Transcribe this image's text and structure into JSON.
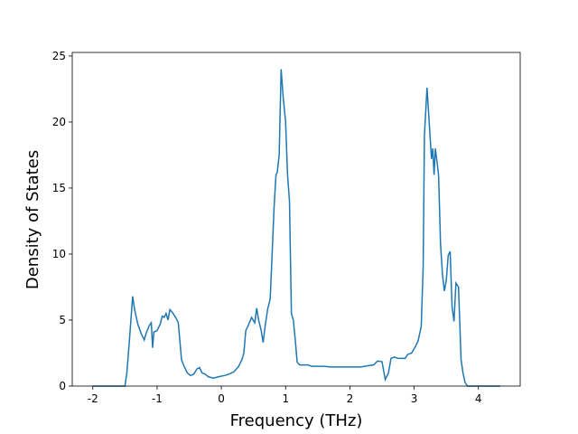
{
  "chart_data": {
    "type": "line",
    "xlabel": "Frequency (THz)",
    "ylabel": "Density of States",
    "x": [
      -2.0,
      -1.5,
      -1.47,
      -1.43,
      -1.38,
      -1.35,
      -1.3,
      -1.25,
      -1.2,
      -1.17,
      -1.12,
      -1.09,
      -1.07,
      -1.05,
      -1.0,
      -0.95,
      -0.92,
      -0.89,
      -0.86,
      -0.83,
      -0.8,
      -0.75,
      -0.7,
      -0.67,
      -0.62,
      -0.58,
      -0.53,
      -0.48,
      -0.43,
      -0.38,
      -0.34,
      -0.3,
      -0.25,
      -0.2,
      -0.12,
      -0.05,
      0.05,
      0.12,
      0.2,
      0.27,
      0.32,
      0.35,
      0.38,
      0.42,
      0.47,
      0.52,
      0.55,
      0.58,
      0.62,
      0.65,
      0.68,
      0.72,
      0.76,
      0.79,
      0.82,
      0.85,
      0.87,
      0.9,
      0.93,
      0.96,
      1.0,
      1.03,
      1.06,
      1.09,
      1.12,
      1.15,
      1.18,
      1.22,
      1.35,
      1.4,
      1.6,
      1.7,
      2.0,
      2.17,
      2.29,
      2.37,
      2.43,
      2.5,
      2.55,
      2.6,
      2.64,
      2.69,
      2.75,
      2.86,
      2.9,
      2.96,
      3.02,
      3.06,
      3.11,
      3.14,
      3.16,
      3.2,
      3.24,
      3.27,
      3.29,
      3.31,
      3.33,
      3.38,
      3.41,
      3.44,
      3.47,
      3.5,
      3.53,
      3.56,
      3.59,
      3.62,
      3.65,
      3.69,
      3.73,
      3.76,
      3.79,
      3.83,
      4.34
    ],
    "series": [
      {
        "color": "#1f77b4",
        "values": [
          0,
          0,
          1,
          3.5,
          6.8,
          5.8,
          4.7,
          4.0,
          3.5,
          4.0,
          4.6,
          4.8,
          2.9,
          4.1,
          4.2,
          4.7,
          5.3,
          5.2,
          5.5,
          5.0,
          5.8,
          5.5,
          5.1,
          4.8,
          2.0,
          1.5,
          1.0,
          0.8,
          0.9,
          1.3,
          1.4,
          1.0,
          0.9,
          0.7,
          0.6,
          0.7,
          0.8,
          0.9,
          1.1,
          1.5,
          2.0,
          2.5,
          4.2,
          4.6,
          5.2,
          4.8,
          5.9,
          5.0,
          4.2,
          3.3,
          4.5,
          5.8,
          6.6,
          10,
          13.5,
          16,
          16.2,
          17.5,
          24,
          22,
          20,
          16,
          14,
          5.5,
          5.0,
          3.5,
          1.8,
          1.6,
          1.6,
          1.5,
          1.5,
          1.45,
          1.45,
          1.45,
          1.55,
          1.6,
          1.9,
          1.85,
          0.5,
          1.0,
          2.1,
          2.2,
          2.1,
          2.1,
          2.4,
          2.5,
          3.0,
          3.4,
          4.5,
          9,
          19,
          22.6,
          19.5,
          17.2,
          18,
          16,
          18,
          16,
          10.8,
          8.5,
          7.2,
          8.0,
          9.9,
          10.2,
          6.0,
          4.9,
          7.8,
          7.5,
          2.0,
          1.0,
          0.3,
          0,
          0
        ]
      }
    ],
    "xlim": [
      -2.32,
      4.65
    ],
    "ylim": [
      0,
      25.27
    ],
    "xticks": [
      -2,
      -1,
      0,
      1,
      2,
      3,
      4
    ],
    "yticks": [
      0,
      5,
      10,
      15,
      20,
      25
    ]
  }
}
